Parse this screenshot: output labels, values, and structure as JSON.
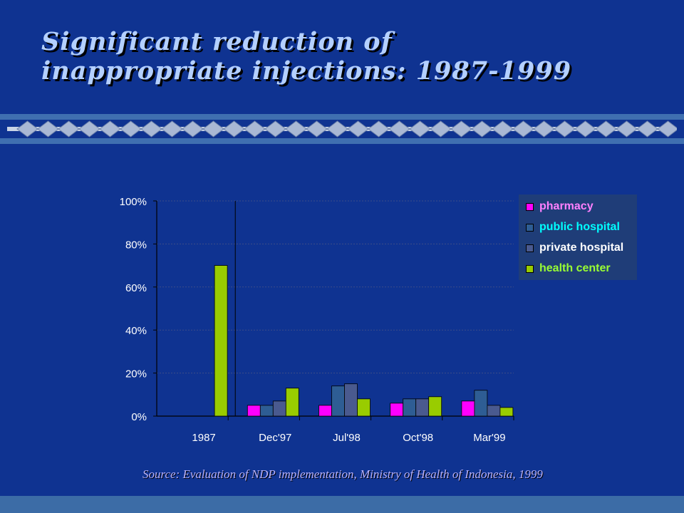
{
  "title_line1": "Significant reduction of",
  "title_line2": "inappropriate injections: 1987-1999",
  "source": "Source:  Evaluation of NDP implementation, Ministry of Health of Indonesia, 1999",
  "colors": {
    "background": "#0f3391",
    "pharmacy": "#ff00ff",
    "public_hospital": "#2e5d94",
    "private_hospital": "#4a5a8f",
    "health_center": "#99cc00"
  },
  "legend": [
    {
      "label": "pharmacy",
      "color": "#ff00ff",
      "text_color": "#ff80ff"
    },
    {
      "label": "public hospital",
      "color": "#2e5d94",
      "text_color": "#00ffff"
    },
    {
      "label": "private hospital",
      "color": "#4a5a8f",
      "text_color": "#ffffff"
    },
    {
      "label": "health center",
      "color": "#99cc00",
      "text_color": "#99ff33"
    }
  ],
  "chart_data": {
    "type": "bar",
    "categories": [
      "1987",
      "Dec'97",
      "Jul'98",
      "Oct'98",
      "Mar'99"
    ],
    "series": [
      {
        "name": "pharmacy",
        "color": "#ff00ff",
        "values": [
          null,
          5,
          5,
          6,
          7
        ]
      },
      {
        "name": "public hospital",
        "color": "#2e5d94",
        "values": [
          null,
          5,
          14,
          8,
          12
        ]
      },
      {
        "name": "private hospital",
        "color": "#4a5a8f",
        "values": [
          null,
          7,
          15,
          8,
          5
        ]
      },
      {
        "name": "health center",
        "color": "#99cc00",
        "values": [
          70,
          13,
          8,
          9,
          4
        ]
      }
    ],
    "yticks": [
      "0%",
      "20%",
      "40%",
      "60%",
      "80%",
      "100%"
    ],
    "ylim": [
      0,
      100
    ],
    "title": "",
    "xlabel": "",
    "ylabel": "",
    "grid": true,
    "legend_position": "top-right"
  }
}
